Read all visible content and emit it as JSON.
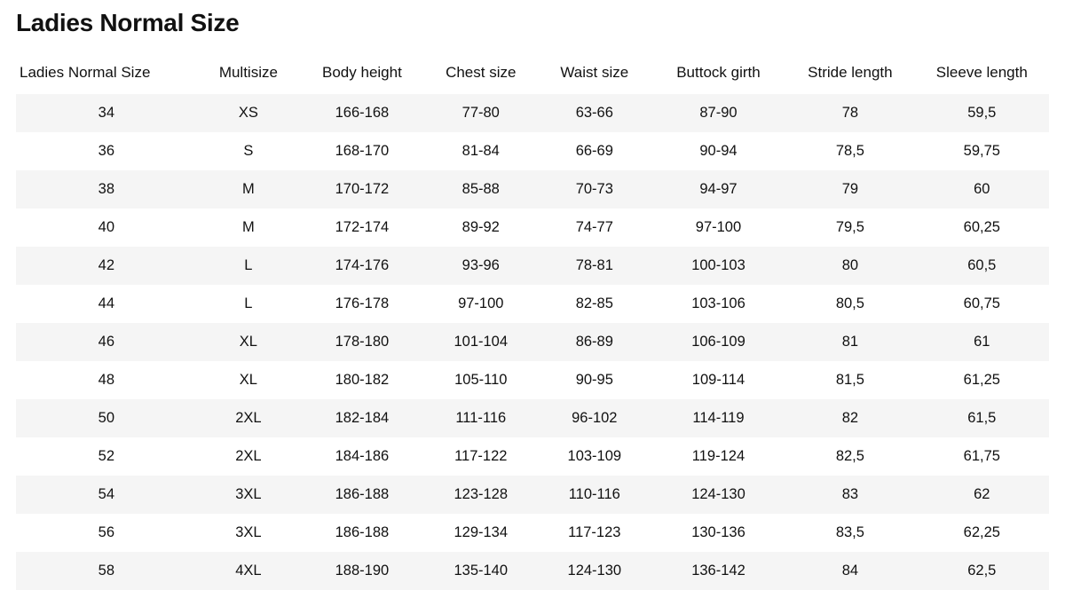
{
  "title": "Ladies Normal Size",
  "table": {
    "columns": [
      "Ladies Normal Size",
      "Multisize",
      "Body height",
      "Chest size",
      "Waist size",
      "Buttock girth",
      "Stride length",
      "Sleeve length"
    ],
    "rows": [
      [
        "34",
        "XS",
        "166-168",
        "77-80",
        "63-66",
        "87-90",
        "78",
        "59,5"
      ],
      [
        "36",
        "S",
        "168-170",
        "81-84",
        "66-69",
        "90-94",
        "78,5",
        "59,75"
      ],
      [
        "38",
        "M",
        "170-172",
        "85-88",
        "70-73",
        "94-97",
        "79",
        "60"
      ],
      [
        "40",
        "M",
        "172-174",
        "89-92",
        "74-77",
        "97-100",
        "79,5",
        "60,25"
      ],
      [
        "42",
        "L",
        "174-176",
        "93-96",
        "78-81",
        "100-103",
        "80",
        "60,5"
      ],
      [
        "44",
        "L",
        "176-178",
        "97-100",
        "82-85",
        "103-106",
        "80,5",
        "60,75"
      ],
      [
        "46",
        "XL",
        "178-180",
        "101-104",
        "86-89",
        "106-109",
        "81",
        "61"
      ],
      [
        "48",
        "XL",
        "180-182",
        "105-110",
        "90-95",
        "109-114",
        "81,5",
        "61,25"
      ],
      [
        "50",
        "2XL",
        "182-184",
        "111-116",
        "96-102",
        "114-119",
        "82",
        "61,5"
      ],
      [
        "52",
        "2XL",
        "184-186",
        "117-122",
        "103-109",
        "119-124",
        "82,5",
        "61,75"
      ],
      [
        "54",
        "3XL",
        "186-188",
        "123-128",
        "110-116",
        "124-130",
        "83",
        "62"
      ],
      [
        "56",
        "3XL",
        "186-188",
        "129-134",
        "117-123",
        "130-136",
        "83,5",
        "62,25"
      ],
      [
        "58",
        "4XL",
        "188-190",
        "135-140",
        "124-130",
        "136-142",
        "84",
        "62,5"
      ]
    ],
    "header_fontsize": 17,
    "cell_fontsize": 16.5,
    "row_odd_bg": "#f5f5f5",
    "row_even_bg": "#ffffff",
    "text_color": "#111111",
    "background_color": "#ffffff",
    "col_widths_pct": [
      17.5,
      10,
      12,
      11,
      11,
      13,
      12.5,
      13
    ]
  }
}
